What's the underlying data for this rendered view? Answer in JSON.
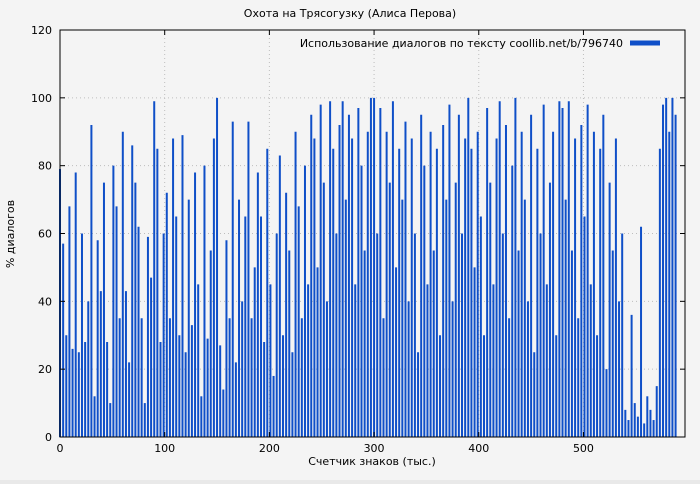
{
  "title": "Охота на Трясогузку (Алиса Перова)",
  "colors": {
    "bar": "#0f4fc8",
    "grid": "#bdbdbd",
    "frame": "#000000",
    "background": "#f4f4f4",
    "text": "#000000"
  },
  "chart_data": {
    "type": "bar",
    "title": "Охота на Трясогузку (Алиса Перова)",
    "xlabel": "Счетчик знаков (тыс.)",
    "ylabel": "% диалогов",
    "legend": "Использование диалогов по тексту coollib.net/b/796740",
    "legend_position": "top-right",
    "grid": true,
    "xlim": [
      0,
      597
    ],
    "ylim": [
      0,
      120
    ],
    "xticks": [
      0,
      100,
      200,
      300,
      400,
      500
    ],
    "yticks": [
      0,
      20,
      40,
      60,
      80,
      100,
      120
    ],
    "points": [
      [
        0,
        79
      ],
      [
        3,
        57
      ],
      [
        6,
        30
      ],
      [
        9,
        68
      ],
      [
        12,
        26
      ],
      [
        15,
        78
      ],
      [
        18,
        25
      ],
      [
        21,
        60
      ],
      [
        24,
        28
      ],
      [
        27,
        40
      ],
      [
        30,
        92
      ],
      [
        33,
        12
      ],
      [
        36,
        58
      ],
      [
        39,
        43
      ],
      [
        42,
        75
      ],
      [
        45,
        28
      ],
      [
        48,
        10
      ],
      [
        51,
        80
      ],
      [
        54,
        68
      ],
      [
        57,
        35
      ],
      [
        60,
        90
      ],
      [
        63,
        43
      ],
      [
        66,
        22
      ],
      [
        69,
        86
      ],
      [
        72,
        75
      ],
      [
        75,
        62
      ],
      [
        78,
        35
      ],
      [
        81,
        10
      ],
      [
        84,
        59
      ],
      [
        87,
        47
      ],
      [
        90,
        99
      ],
      [
        93,
        85
      ],
      [
        96,
        28
      ],
      [
        99,
        60
      ],
      [
        102,
        72
      ],
      [
        105,
        35
      ],
      [
        108,
        88
      ],
      [
        111,
        65
      ],
      [
        114,
        30
      ],
      [
        117,
        89
      ],
      [
        120,
        25
      ],
      [
        123,
        70
      ],
      [
        126,
        33
      ],
      [
        129,
        78
      ],
      [
        132,
        45
      ],
      [
        135,
        12
      ],
      [
        138,
        80
      ],
      [
        141,
        29
      ],
      [
        144,
        55
      ],
      [
        147,
        88
      ],
      [
        150,
        100
      ],
      [
        153,
        27
      ],
      [
        156,
        14
      ],
      [
        159,
        58
      ],
      [
        162,
        35
      ],
      [
        165,
        93
      ],
      [
        168,
        22
      ],
      [
        171,
        70
      ],
      [
        174,
        40
      ],
      [
        177,
        65
      ],
      [
        180,
        93
      ],
      [
        183,
        35
      ],
      [
        186,
        50
      ],
      [
        189,
        78
      ],
      [
        192,
        65
      ],
      [
        195,
        28
      ],
      [
        198,
        85
      ],
      [
        201,
        45
      ],
      [
        204,
        18
      ],
      [
        207,
        60
      ],
      [
        210,
        83
      ],
      [
        213,
        30
      ],
      [
        216,
        72
      ],
      [
        219,
        55
      ],
      [
        222,
        25
      ],
      [
        225,
        90
      ],
      [
        228,
        68
      ],
      [
        231,
        35
      ],
      [
        234,
        80
      ],
      [
        237,
        45
      ],
      [
        240,
        95
      ],
      [
        243,
        88
      ],
      [
        246,
        50
      ],
      [
        249,
        98
      ],
      [
        252,
        75
      ],
      [
        255,
        40
      ],
      [
        258,
        99
      ],
      [
        261,
        85
      ],
      [
        264,
        60
      ],
      [
        267,
        92
      ],
      [
        270,
        99
      ],
      [
        273,
        70
      ],
      [
        276,
        95
      ],
      [
        279,
        88
      ],
      [
        282,
        45
      ],
      [
        285,
        97
      ],
      [
        288,
        80
      ],
      [
        291,
        55
      ],
      [
        294,
        90
      ],
      [
        297,
        100
      ],
      [
        300,
        100
      ],
      [
        303,
        60
      ],
      [
        306,
        97
      ],
      [
        309,
        35
      ],
      [
        312,
        90
      ],
      [
        315,
        75
      ],
      [
        318,
        99
      ],
      [
        321,
        50
      ],
      [
        324,
        85
      ],
      [
        327,
        70
      ],
      [
        330,
        93
      ],
      [
        333,
        40
      ],
      [
        336,
        88
      ],
      [
        339,
        60
      ],
      [
        342,
        25
      ],
      [
        345,
        95
      ],
      [
        348,
        80
      ],
      [
        351,
        45
      ],
      [
        354,
        90
      ],
      [
        357,
        55
      ],
      [
        360,
        85
      ],
      [
        363,
        30
      ],
      [
        366,
        92
      ],
      [
        369,
        70
      ],
      [
        372,
        98
      ],
      [
        375,
        40
      ],
      [
        378,
        75
      ],
      [
        381,
        95
      ],
      [
        384,
        60
      ],
      [
        387,
        88
      ],
      [
        390,
        100
      ],
      [
        393,
        85
      ],
      [
        396,
        50
      ],
      [
        399,
        90
      ],
      [
        402,
        65
      ],
      [
        405,
        30
      ],
      [
        408,
        97
      ],
      [
        411,
        75
      ],
      [
        414,
        45
      ],
      [
        417,
        88
      ],
      [
        420,
        99
      ],
      [
        423,
        60
      ],
      [
        426,
        92
      ],
      [
        429,
        35
      ],
      [
        432,
        80
      ],
      [
        435,
        100
      ],
      [
        438,
        55
      ],
      [
        441,
        90
      ],
      [
        444,
        70
      ],
      [
        447,
        40
      ],
      [
        450,
        95
      ],
      [
        453,
        25
      ],
      [
        456,
        85
      ],
      [
        459,
        60
      ],
      [
        462,
        98
      ],
      [
        465,
        45
      ],
      [
        468,
        75
      ],
      [
        471,
        90
      ],
      [
        474,
        30
      ],
      [
        477,
        99
      ],
      [
        480,
        97
      ],
      [
        483,
        70
      ],
      [
        486,
        99
      ],
      [
        489,
        55
      ],
      [
        492,
        88
      ],
      [
        495,
        35
      ],
      [
        498,
        92
      ],
      [
        501,
        65
      ],
      [
        504,
        98
      ],
      [
        507,
        45
      ],
      [
        510,
        90
      ],
      [
        513,
        30
      ],
      [
        516,
        85
      ],
      [
        519,
        95
      ],
      [
        522,
        20
      ],
      [
        525,
        75
      ],
      [
        528,
        55
      ],
      [
        531,
        88
      ],
      [
        534,
        40
      ],
      [
        537,
        60
      ],
      [
        540,
        8
      ],
      [
        543,
        5
      ],
      [
        546,
        36
      ],
      [
        549,
        10
      ],
      [
        552,
        6
      ],
      [
        555,
        62
      ],
      [
        558,
        4
      ],
      [
        561,
        12
      ],
      [
        564,
        8
      ],
      [
        567,
        5
      ],
      [
        570,
        15
      ],
      [
        573,
        85
      ],
      [
        576,
        98
      ],
      [
        579,
        100
      ],
      [
        582,
        90
      ],
      [
        585,
        100
      ],
      [
        588,
        95
      ]
    ]
  }
}
